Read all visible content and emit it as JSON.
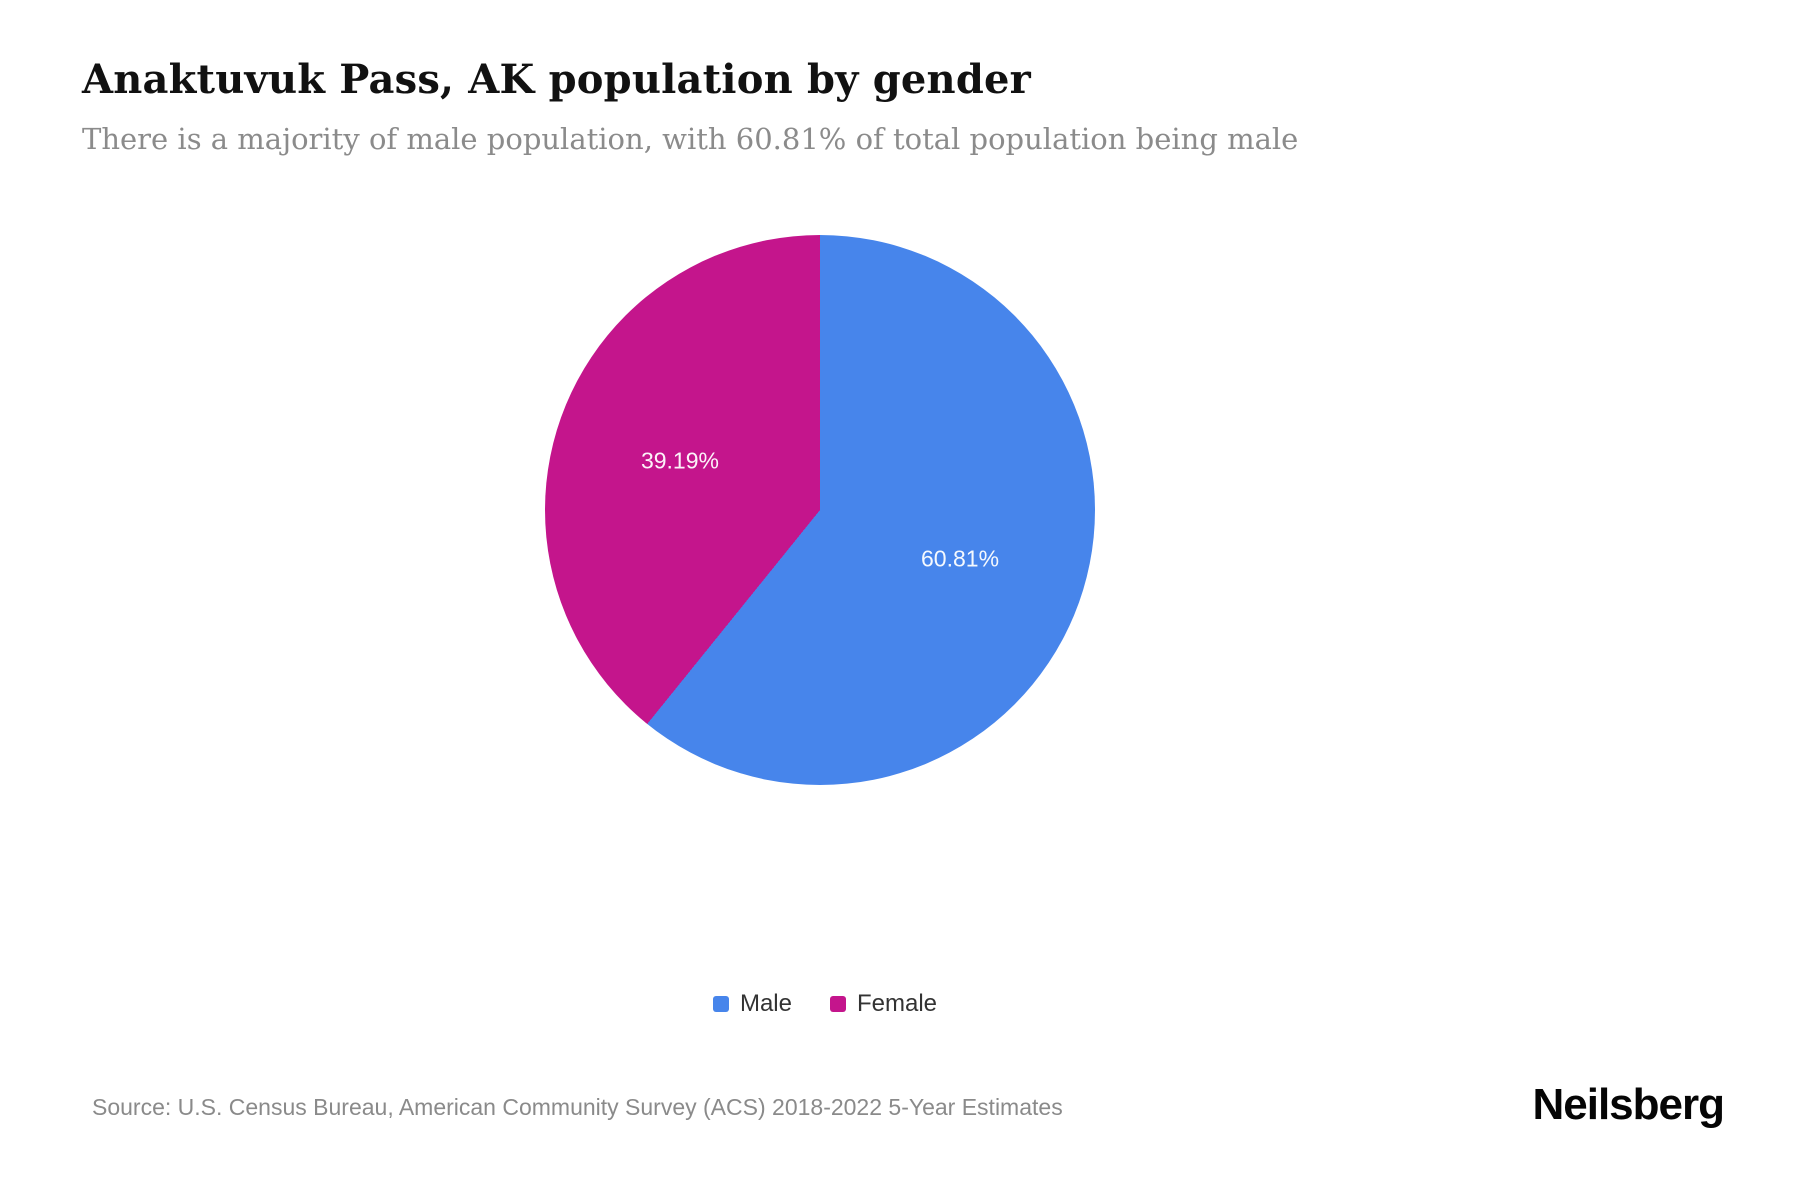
{
  "page": {
    "title": "Anaktuvuk Pass, AK population by gender",
    "subtitle": "There is a majority of male population, with 60.81% of total population being male",
    "source": "Source: U.S. Census Bureau, American Community Survey (ACS) 2018-2022 5-Year Estimates",
    "brand": "Neilsberg"
  },
  "chart_data": {
    "type": "pie",
    "title": "Anaktuvuk Pass, AK population by gender",
    "subtitle": "There is a majority of male population, with 60.81% of total population being male",
    "units": "percent",
    "start_angle_deg": 0,
    "direction": "clockwise",
    "legend_position": "bottom",
    "series": [
      {
        "name": "Male",
        "value": 60.81,
        "label": "60.81%",
        "color": "#4785eb"
      },
      {
        "name": "Female",
        "value": 39.19,
        "label": "39.19%",
        "color": "#c4158c"
      }
    ]
  }
}
